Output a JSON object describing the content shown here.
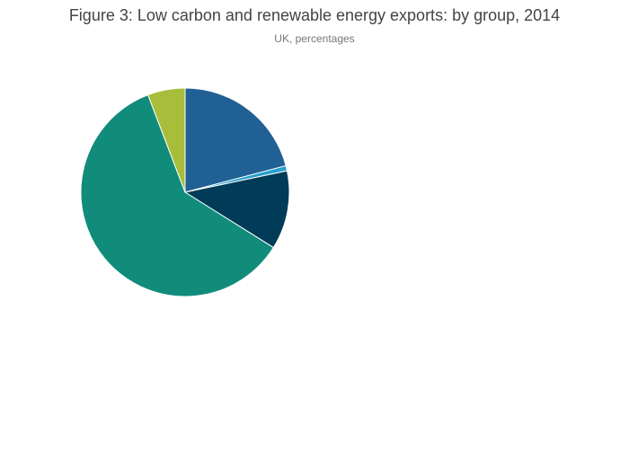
{
  "chart_data": {
    "type": "pie",
    "title": "Figure 3: Low carbon and renewable energy exports: by group, 2014",
    "subtitle": "UK, percentages",
    "values": [
      20.9,
      0.8,
      12.2,
      60.3,
      5.8
    ],
    "colors": [
      "#206095",
      "#27a0cc",
      "#003c57",
      "#118c7b",
      "#a8bd3a"
    ]
  }
}
